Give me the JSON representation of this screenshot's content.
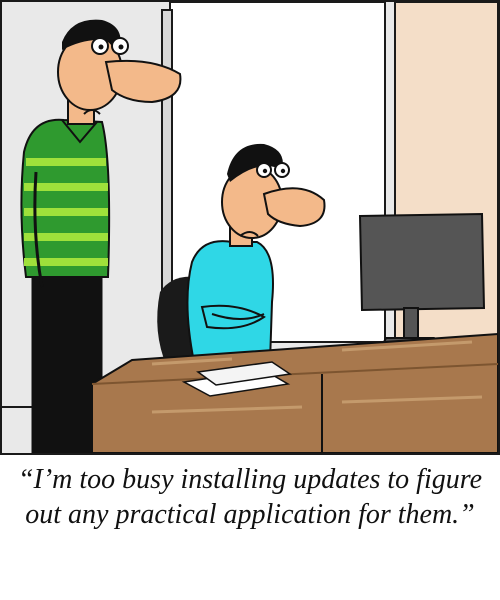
{
  "caption": "“I’m too busy installing updates to figure out any practical application for them.”",
  "colors": {
    "wall": "#e9e9e9",
    "window": "#ffffff",
    "right_wall": "#f4dec8",
    "desk": "#a8784d",
    "desk_dark": "#7d5530",
    "shirt_green": "#2f9a2f",
    "shirt_stripe": "#9fe13b",
    "shirt_cyan": "#2fd7e6",
    "skin": "#f3b98a",
    "monitor": "#555555"
  },
  "icons": [
    "standing-man",
    "seated-man",
    "computer-monitor",
    "office-chair",
    "desk",
    "papers"
  ]
}
